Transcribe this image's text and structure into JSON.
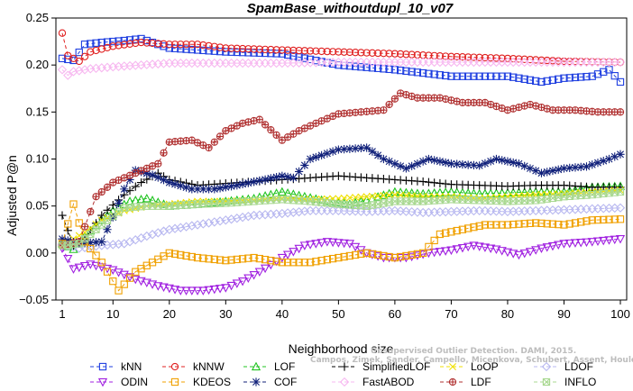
{
  "chart_data": {
    "type": "line",
    "title": "SpamBase_withoutdupl_10_v07",
    "xlabel": "Neighborhood size",
    "ylabel": "Adjusted P@n",
    "xlim": [
      1,
      100
    ],
    "ylim": [
      -0.05,
      0.25
    ],
    "xticks": [
      1,
      10,
      20,
      30,
      40,
      50,
      60,
      70,
      80,
      90,
      100
    ],
    "yticks": [
      -0.05,
      0.0,
      0.05,
      0.1,
      0.15,
      0.2,
      0.25
    ],
    "xtick_labels": [
      "1",
      "10",
      "20",
      "30",
      "40",
      "50",
      "60",
      "70",
      "80",
      "90",
      "100"
    ],
    "ytick_labels": [
      "−0.05",
      "0.00",
      "0.05",
      "0.10",
      "0.15",
      "0.20",
      "0.25"
    ],
    "grid": false,
    "legend_position": "bottom",
    "series": [
      {
        "name": "kNN",
        "color": "#1f3fe0",
        "marker": "square",
        "linestyle": "dashed",
        "points": [
          [
            1,
            0.207
          ],
          [
            3,
            0.205
          ],
          [
            5,
            0.222
          ],
          [
            8,
            0.224
          ],
          [
            12,
            0.226
          ],
          [
            15,
            0.228
          ],
          [
            20,
            0.218
          ],
          [
            30,
            0.214
          ],
          [
            40,
            0.212
          ],
          [
            50,
            0.2
          ],
          [
            60,
            0.195
          ],
          [
            70,
            0.188
          ],
          [
            80,
            0.188
          ],
          [
            86,
            0.182
          ],
          [
            90,
            0.186
          ],
          [
            95,
            0.188
          ],
          [
            98,
            0.195
          ],
          [
            100,
            0.182
          ]
        ]
      },
      {
        "name": "kNNW",
        "color": "#e02020",
        "marker": "circle",
        "linestyle": "dashed",
        "points": [
          [
            1,
            0.234
          ],
          [
            2,
            0.21
          ],
          [
            4,
            0.204
          ],
          [
            6,
            0.214
          ],
          [
            10,
            0.22
          ],
          [
            15,
            0.224
          ],
          [
            20,
            0.222
          ],
          [
            25,
            0.222
          ],
          [
            30,
            0.218
          ],
          [
            40,
            0.216
          ],
          [
            50,
            0.214
          ],
          [
            60,
            0.212
          ],
          [
            70,
            0.209
          ],
          [
            80,
            0.207
          ],
          [
            90,
            0.204
          ],
          [
            100,
            0.203
          ]
        ]
      },
      {
        "name": "LOF",
        "color": "#22c422",
        "marker": "triangle-up",
        "linestyle": "dashed",
        "points": [
          [
            1,
            0.01
          ],
          [
            3,
            0.004
          ],
          [
            5,
            0.018
          ],
          [
            8,
            0.035
          ],
          [
            10,
            0.045
          ],
          [
            13,
            0.055
          ],
          [
            16,
            0.058
          ],
          [
            20,
            0.05
          ],
          [
            25,
            0.052
          ],
          [
            30,
            0.055
          ],
          [
            35,
            0.058
          ],
          [
            40,
            0.065
          ],
          [
            44,
            0.06
          ],
          [
            48,
            0.055
          ],
          [
            52,
            0.052
          ],
          [
            56,
            0.058
          ],
          [
            60,
            0.065
          ],
          [
            65,
            0.063
          ],
          [
            70,
            0.065
          ],
          [
            75,
            0.063
          ],
          [
            80,
            0.064
          ],
          [
            85,
            0.065
          ],
          [
            90,
            0.065
          ],
          [
            95,
            0.07
          ],
          [
            100,
            0.071
          ]
        ]
      },
      {
        "name": "SimplifiedLOF",
        "color": "#000000",
        "marker": "plus",
        "linestyle": "dashed",
        "points": [
          [
            1,
            0.04
          ],
          [
            3,
            0.008
          ],
          [
            5,
            0.015
          ],
          [
            8,
            0.04
          ],
          [
            12,
            0.062
          ],
          [
            15,
            0.075
          ],
          [
            18,
            0.085
          ],
          [
            20,
            0.078
          ],
          [
            25,
            0.072
          ],
          [
            30,
            0.074
          ],
          [
            35,
            0.076
          ],
          [
            40,
            0.078
          ],
          [
            45,
            0.08
          ],
          [
            50,
            0.082
          ],
          [
            55,
            0.08
          ],
          [
            60,
            0.078
          ],
          [
            65,
            0.076
          ],
          [
            70,
            0.073
          ],
          [
            75,
            0.072
          ],
          [
            80,
            0.071
          ],
          [
            85,
            0.072
          ],
          [
            90,
            0.072
          ],
          [
            95,
            0.07
          ],
          [
            100,
            0.07
          ]
        ]
      },
      {
        "name": "LoOP",
        "color": "#f0e000",
        "marker": "x",
        "linestyle": "dashed",
        "points": [
          [
            1,
            0.01
          ],
          [
            3,
            0.015
          ],
          [
            5,
            0.022
          ],
          [
            8,
            0.035
          ],
          [
            12,
            0.045
          ],
          [
            16,
            0.05
          ],
          [
            20,
            0.052
          ],
          [
            25,
            0.055
          ],
          [
            30,
            0.055
          ],
          [
            35,
            0.056
          ],
          [
            40,
            0.058
          ],
          [
            45,
            0.057
          ],
          [
            50,
            0.058
          ],
          [
            55,
            0.06
          ],
          [
            60,
            0.062
          ],
          [
            65,
            0.06
          ],
          [
            70,
            0.06
          ],
          [
            75,
            0.058
          ],
          [
            80,
            0.06
          ],
          [
            85,
            0.062
          ],
          [
            90,
            0.063
          ],
          [
            95,
            0.065
          ],
          [
            100,
            0.067
          ]
        ]
      },
      {
        "name": "LDOF",
        "color": "#b8b8f0",
        "marker": "diamond",
        "linestyle": "dashed",
        "points": [
          [
            1,
            0.01
          ],
          [
            4,
            0.005
          ],
          [
            8,
            0.008
          ],
          [
            12,
            0.01
          ],
          [
            16,
            0.018
          ],
          [
            20,
            0.025
          ],
          [
            25,
            0.03
          ],
          [
            30,
            0.035
          ],
          [
            35,
            0.04
          ],
          [
            40,
            0.042
          ],
          [
            45,
            0.045
          ],
          [
            50,
            0.045
          ],
          [
            55,
            0.044
          ],
          [
            60,
            0.045
          ],
          [
            65,
            0.043
          ],
          [
            70,
            0.044
          ],
          [
            75,
            0.045
          ],
          [
            80,
            0.044
          ],
          [
            85,
            0.045
          ],
          [
            90,
            0.046
          ],
          [
            95,
            0.047
          ],
          [
            100,
            0.048
          ]
        ]
      },
      {
        "name": "ODIN",
        "color": "#a020e0",
        "marker": "triangle-down",
        "linestyle": "dashed",
        "points": [
          [
            1,
            0.005
          ],
          [
            3,
            -0.017
          ],
          [
            6,
            -0.012
          ],
          [
            10,
            -0.018
          ],
          [
            14,
            -0.028
          ],
          [
            18,
            -0.035
          ],
          [
            22,
            -0.04
          ],
          [
            26,
            -0.04
          ],
          [
            30,
            -0.037
          ],
          [
            33,
            -0.03
          ],
          [
            36,
            -0.02
          ],
          [
            40,
            -0.005
          ],
          [
            44,
            0.008
          ],
          [
            48,
            0.012
          ],
          [
            52,
            0.01
          ],
          [
            55,
            0.0
          ],
          [
            58,
            -0.005
          ],
          [
            62,
            -0.005
          ],
          [
            66,
            0.0
          ],
          [
            70,
            0.003
          ],
          [
            74,
            0.008
          ],
          [
            78,
            0.004
          ],
          [
            82,
            -0.002
          ],
          [
            86,
            0.005
          ],
          [
            90,
            0.01
          ],
          [
            95,
            0.012
          ],
          [
            100,
            0.015
          ]
        ]
      },
      {
        "name": "COF",
        "color": "#10207a",
        "marker": "asterisk",
        "linestyle": "dashed",
        "points": [
          [
            1,
            0.015
          ],
          [
            4,
            0.01
          ],
          [
            8,
            0.012
          ],
          [
            10,
            0.038
          ],
          [
            12,
            0.068
          ],
          [
            14,
            0.088
          ],
          [
            17,
            0.083
          ],
          [
            20,
            0.075
          ],
          [
            24,
            0.068
          ],
          [
            28,
            0.068
          ],
          [
            32,
            0.072
          ],
          [
            36,
            0.077
          ],
          [
            40,
            0.082
          ],
          [
            42,
            0.08
          ],
          [
            45,
            0.1
          ],
          [
            50,
            0.11
          ],
          [
            55,
            0.112
          ],
          [
            58,
            0.1
          ],
          [
            62,
            0.09
          ],
          [
            66,
            0.1
          ],
          [
            70,
            0.095
          ],
          [
            75,
            0.093
          ],
          [
            78,
            0.1
          ],
          [
            82,
            0.095
          ],
          [
            86,
            0.085
          ],
          [
            90,
            0.09
          ],
          [
            94,
            0.092
          ],
          [
            98,
            0.1
          ],
          [
            100,
            0.105
          ]
        ]
      },
      {
        "name": "FastABOD",
        "color": "#f7b8f0",
        "marker": "diamond",
        "linestyle": "dashed",
        "points": [
          [
            1,
            0.195
          ],
          [
            2,
            0.189
          ],
          [
            3,
            0.193
          ],
          [
            6,
            0.196
          ],
          [
            10,
            0.198
          ],
          [
            15,
            0.2
          ],
          [
            20,
            0.202
          ],
          [
            30,
            0.202
          ],
          [
            40,
            0.202
          ],
          [
            50,
            0.203
          ],
          [
            60,
            0.203
          ],
          [
            70,
            0.203
          ],
          [
            80,
            0.203
          ],
          [
            90,
            0.203
          ],
          [
            100,
            0.203
          ]
        ]
      },
      {
        "name": "KDEOS",
        "color": "#f0a000",
        "marker": "square",
        "linestyle": "dashed",
        "points": [
          [
            1,
            0.01
          ],
          [
            3,
            0.052
          ],
          [
            5,
            0.012
          ],
          [
            8,
            -0.01
          ],
          [
            11,
            -0.04
          ],
          [
            14,
            -0.02
          ],
          [
            17,
            -0.01
          ],
          [
            20,
            0.0
          ],
          [
            25,
            -0.005
          ],
          [
            30,
            -0.008
          ],
          [
            35,
            -0.005
          ],
          [
            40,
            -0.01
          ],
          [
            45,
            -0.01
          ],
          [
            50,
            -0.005
          ],
          [
            55,
            0.0
          ],
          [
            60,
            -0.005
          ],
          [
            65,
            0.0
          ],
          [
            68,
            0.02
          ],
          [
            72,
            0.025
          ],
          [
            76,
            0.03
          ],
          [
            80,
            0.03
          ],
          [
            85,
            0.032
          ],
          [
            90,
            0.03
          ],
          [
            95,
            0.035
          ],
          [
            100,
            0.036
          ]
        ]
      },
      {
        "name": "LDF",
        "color": "#b03030",
        "marker": "circle-plus",
        "linestyle": "dashed",
        "points": [
          [
            1,
            0.008
          ],
          [
            4,
            0.012
          ],
          [
            7,
            0.06
          ],
          [
            10,
            0.075
          ],
          [
            14,
            0.085
          ],
          [
            18,
            0.095
          ],
          [
            20,
            0.118
          ],
          [
            24,
            0.12
          ],
          [
            27,
            0.112
          ],
          [
            30,
            0.13
          ],
          [
            33,
            0.138
          ],
          [
            36,
            0.142
          ],
          [
            40,
            0.12
          ],
          [
            43,
            0.13
          ],
          [
            46,
            0.138
          ],
          [
            50,
            0.148
          ],
          [
            54,
            0.15
          ],
          [
            58,
            0.152
          ],
          [
            61,
            0.17
          ],
          [
            64,
            0.165
          ],
          [
            68,
            0.165
          ],
          [
            72,
            0.16
          ],
          [
            76,
            0.16
          ],
          [
            80,
            0.152
          ],
          [
            84,
            0.158
          ],
          [
            88,
            0.152
          ],
          [
            92,
            0.152
          ],
          [
            96,
            0.15
          ],
          [
            100,
            0.15
          ]
        ]
      },
      {
        "name": "INFLO",
        "color": "#a8d890",
        "marker": "square-x",
        "linestyle": "dashed",
        "points": [
          [
            1,
            0.008
          ],
          [
            4,
            0.01
          ],
          [
            8,
            0.03
          ],
          [
            12,
            0.048
          ],
          [
            16,
            0.05
          ],
          [
            20,
            0.05
          ],
          [
            25,
            0.052
          ],
          [
            30,
            0.053
          ],
          [
            35,
            0.055
          ],
          [
            40,
            0.057
          ],
          [
            45,
            0.055
          ],
          [
            50,
            0.052
          ],
          [
            55,
            0.05
          ],
          [
            60,
            0.055
          ],
          [
            65,
            0.055
          ],
          [
            70,
            0.057
          ],
          [
            75,
            0.056
          ],
          [
            80,
            0.055
          ],
          [
            85,
            0.056
          ],
          [
            90,
            0.06
          ],
          [
            95,
            0.062
          ],
          [
            100,
            0.065
          ]
        ]
      }
    ],
    "legend_rows": [
      [
        "kNN",
        "kNNW",
        "LOF",
        "SimplifiedLOF",
        "LoOP",
        "LDOF"
      ],
      [
        "ODIN",
        "KDEOS",
        "COF",
        "FastABOD",
        "LDF",
        "INFLO"
      ]
    ],
    "watermark": [
      "Unsupervised Outlier Detection. DAMI, 2015.",
      "Campos, Zimek, Sander, Campello, Micenkova, Schubert, Assent, Houle"
    ]
  }
}
